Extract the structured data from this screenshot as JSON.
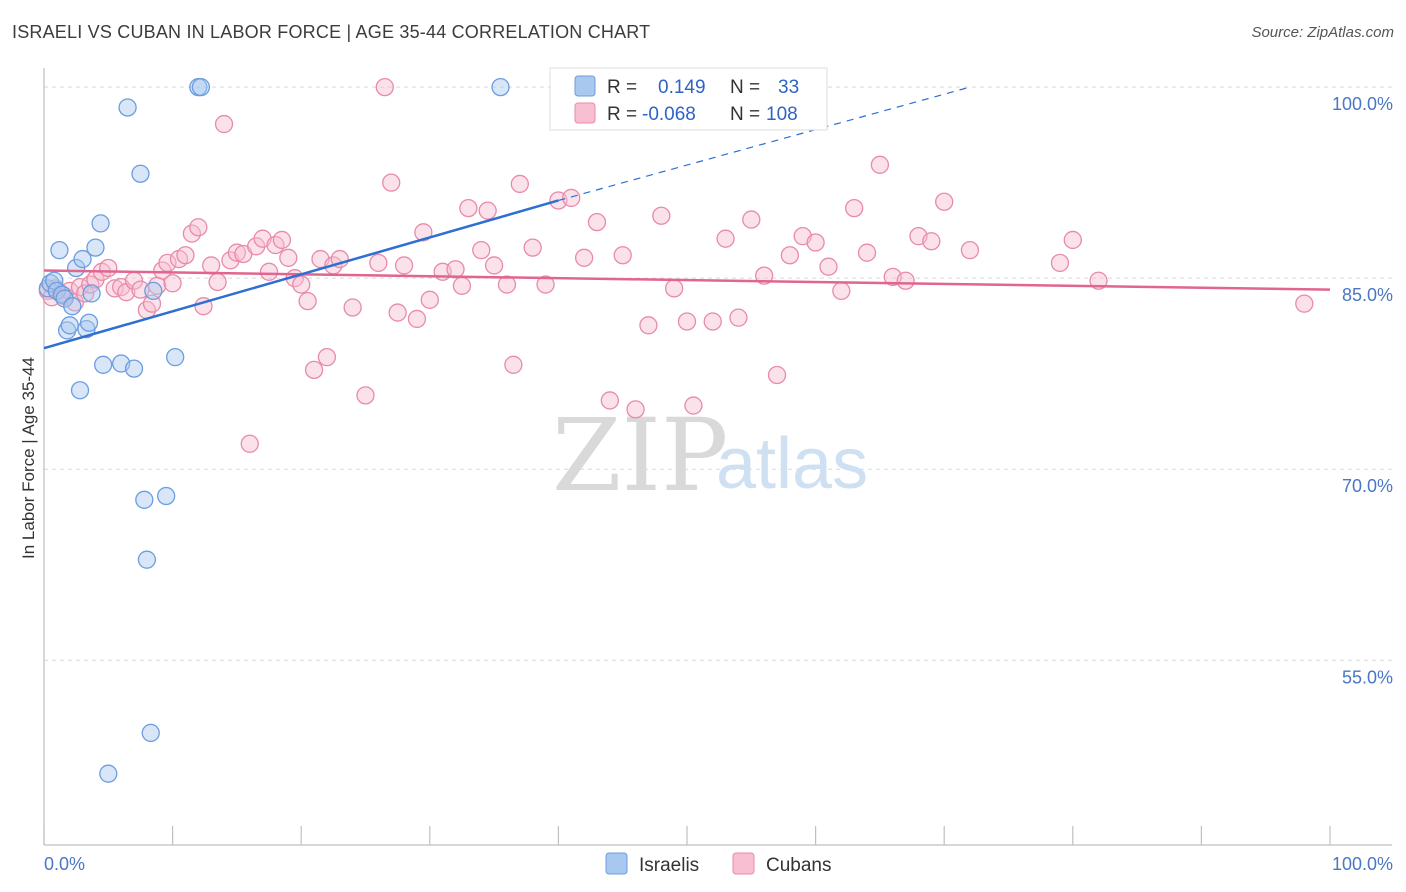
{
  "header": {
    "title": "ISRAELI VS CUBAN IN LABOR FORCE | AGE 35-44 CORRELATION CHART",
    "source": "Source: ZipAtlas.com"
  },
  "watermark": {
    "zip": "ZIP",
    "atlas": "atlas"
  },
  "legend": {
    "r_label": "R =",
    "n_label": "N =",
    "israelis": {
      "r": "0.149",
      "n": "33"
    },
    "cubans": {
      "r": "-0.068",
      "n": "108"
    }
  },
  "colors": {
    "israelis_fill": "#a9c8f0",
    "israelis_stroke": "#6b9de0",
    "israelis_line": "#2e6fd1",
    "cubans_fill": "#f7bfd1",
    "cubans_stroke": "#e88aa9",
    "cubans_line": "#e0658f"
  },
  "chart_data": {
    "type": "scatter",
    "title": "ISRAELI VS CUBAN IN LABOR FORCE | AGE 35-44 CORRELATION CHART",
    "xlabel": "",
    "ylabel": "In Labor Force | Age 35-44",
    "xlim": [
      0,
      100
    ],
    "ylim": [
      40.5,
      101.5
    ],
    "x_tick_labels": [
      "0.0%",
      "100.0%"
    ],
    "y_ticks": [
      100,
      85,
      70,
      55
    ],
    "y_tick_labels": [
      "100.0%",
      "85.0%",
      "70.0%",
      "55.0%"
    ],
    "legend_entries": [
      "Israelis",
      "Cubans"
    ],
    "series": [
      {
        "name": "Israelis",
        "x": [
          0.3,
          0.5,
          0.8,
          1.0,
          1.2,
          1.4,
          1.6,
          1.8,
          2.0,
          2.2,
          2.5,
          2.8,
          3.0,
          3.3,
          3.5,
          3.7,
          4.0,
          4.4,
          4.6,
          5.0,
          6.0,
          6.5,
          7.0,
          7.5,
          7.8,
          8.0,
          8.3,
          8.5,
          9.5,
          10.2,
          12.0,
          12.2,
          35.5
        ],
        "y": [
          84.2,
          84.6,
          84.8,
          84.0,
          87.2,
          83.7,
          83.4,
          80.9,
          81.3,
          82.8,
          85.8,
          76.2,
          86.5,
          81.0,
          81.5,
          83.8,
          87.4,
          89.3,
          78.2,
          46.1,
          78.3,
          98.4,
          77.9,
          93.2,
          67.6,
          62.9,
          49.3,
          84.0,
          67.9,
          78.8,
          100.0,
          100.0,
          100.0
        ]
      },
      {
        "name": "Cubans",
        "x": [
          0.3,
          0.6,
          0.9,
          1.3,
          1.6,
          2.0,
          2.4,
          2.8,
          3.2,
          3.6,
          4.0,
          4.5,
          5.0,
          5.5,
          6.0,
          6.4,
          7.0,
          7.5,
          8.0,
          8.4,
          8.8,
          9.2,
          9.6,
          10.0,
          10.5,
          11.0,
          11.5,
          12.0,
          12.4,
          13.0,
          13.5,
          14.0,
          14.5,
          15.0,
          15.5,
          16.0,
          16.5,
          17.0,
          17.5,
          18.0,
          18.5,
          19.0,
          19.5,
          20.0,
          20.5,
          21.0,
          21.5,
          22.0,
          22.5,
          23.0,
          24.0,
          25.0,
          26.0,
          26.5,
          27.0,
          27.5,
          28.0,
          29.0,
          29.5,
          30.0,
          31.0,
          32.0,
          32.5,
          33.0,
          34.0,
          34.5,
          35.0,
          36.0,
          36.5,
          37.0,
          38.0,
          39.0,
          40.0,
          41.0,
          42.0,
          43.0,
          44.0,
          45.0,
          46.0,
          47.0,
          48.0,
          49.0,
          50.0,
          50.5,
          52.0,
          53.0,
          54.0,
          55.0,
          56.0,
          57.0,
          58.0,
          59.0,
          60.0,
          61.0,
          62.0,
          63.0,
          64.0,
          65.0,
          66.0,
          67.0,
          68.0,
          69.0,
          70.0,
          72.0,
          79.0,
          80.0,
          82.0,
          98.0
        ],
        "y": [
          84.0,
          83.5,
          84.2,
          83.8,
          83.6,
          84.0,
          83.1,
          84.3,
          83.8,
          84.5,
          84.9,
          85.5,
          85.8,
          84.2,
          84.3,
          83.9,
          84.8,
          84.1,
          82.5,
          83.0,
          84.4,
          85.6,
          86.2,
          84.6,
          86.5,
          86.8,
          88.5,
          89.0,
          82.8,
          86.0,
          84.7,
          97.1,
          86.4,
          87.0,
          86.9,
          72.0,
          87.5,
          88.1,
          85.5,
          87.6,
          88.0,
          86.6,
          85.0,
          84.5,
          83.2,
          77.8,
          86.5,
          78.8,
          86.0,
          86.5,
          82.7,
          75.8,
          86.2,
          100.0,
          92.5,
          82.3,
          86.0,
          81.8,
          88.6,
          83.3,
          85.5,
          85.7,
          84.4,
          90.5,
          87.2,
          90.3,
          86.0,
          84.5,
          78.2,
          92.4,
          87.4,
          84.5,
          91.1,
          91.3,
          86.6,
          89.4,
          75.4,
          86.8,
          74.7,
          81.3,
          89.9,
          84.2,
          81.6,
          75.0,
          81.6,
          88.1,
          81.9,
          89.6,
          85.2,
          77.4,
          86.8,
          88.3,
          87.8,
          85.9,
          84.0,
          90.5,
          87.0,
          93.9,
          85.1,
          84.8,
          88.3,
          87.9,
          91.0,
          87.2,
          86.2,
          88.0,
          84.8,
          83.0
        ],
        "fit": {
          "x0": 0,
          "y0": 85.6,
          "x1": 100,
          "y1": 84.1
        }
      }
    ],
    "israelis_fit": {
      "x0": 0,
      "y0": 79.5,
      "x1": 40,
      "y1": 91.1,
      "x2": 72,
      "y2": 100.0
    }
  }
}
